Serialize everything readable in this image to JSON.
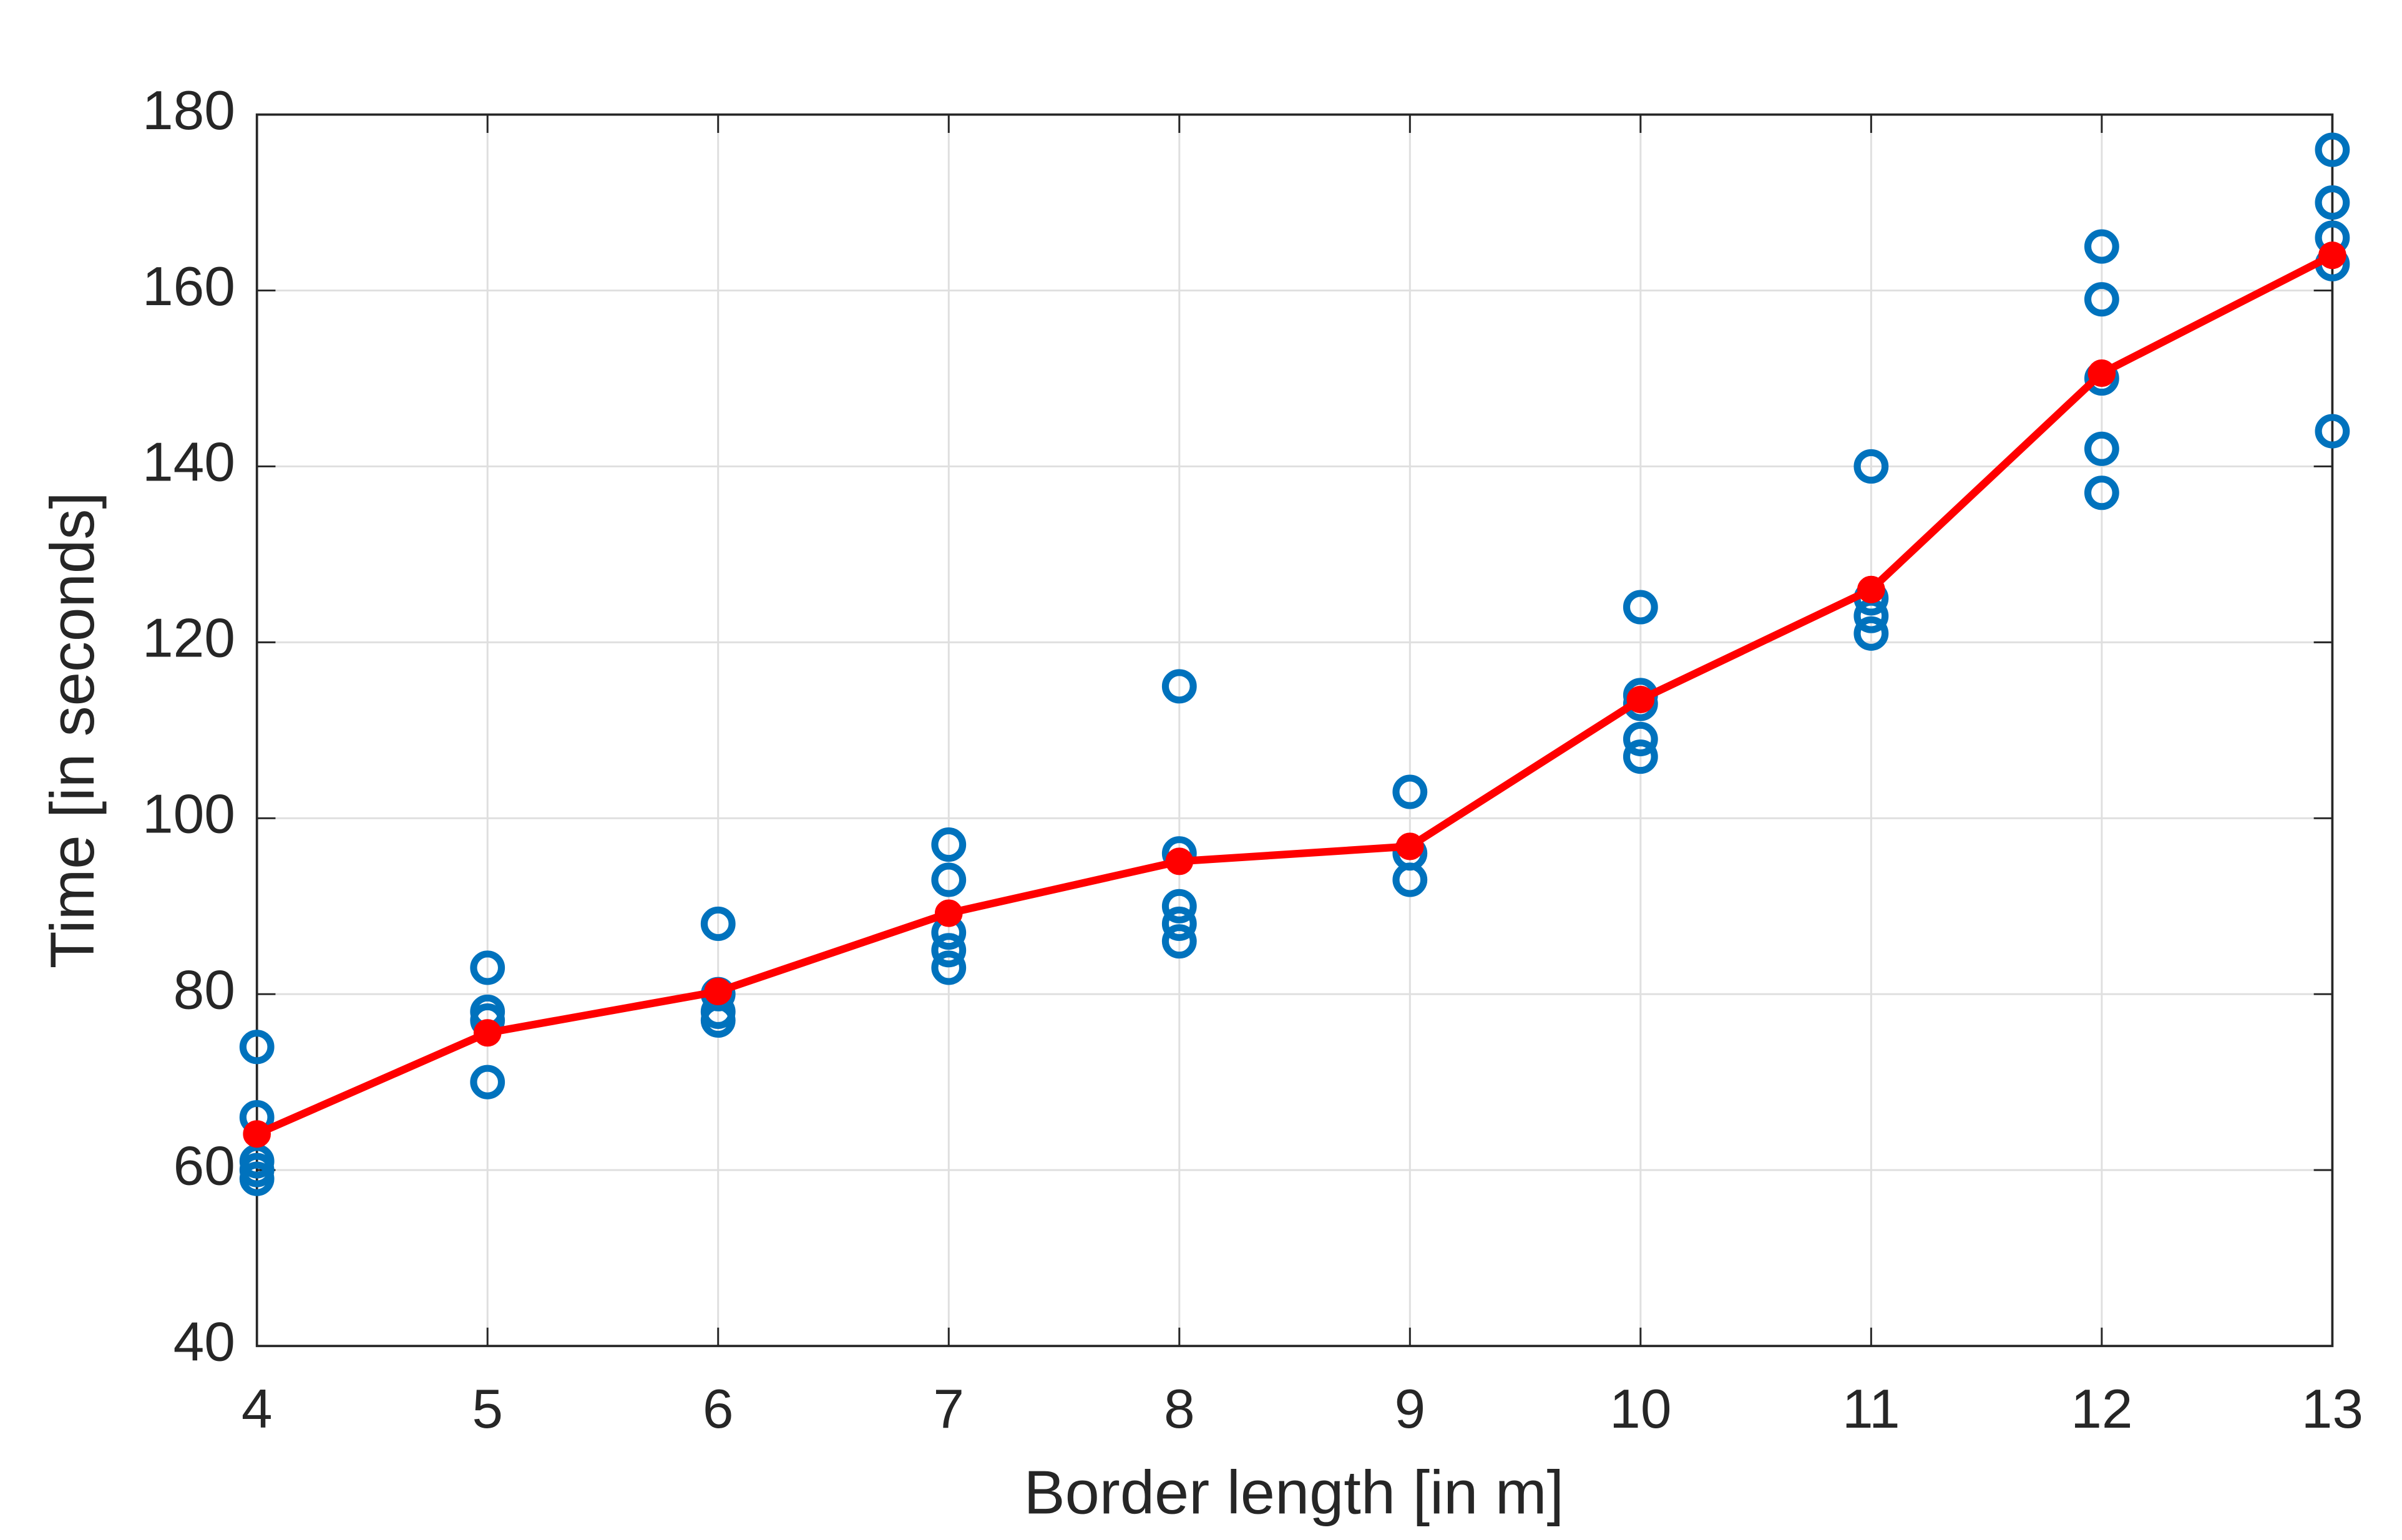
{
  "chart_data": {
    "type": "scatter",
    "xlabel": "Border length [in m]",
    "ylabel": "Time [in seconds]",
    "xlim": [
      4,
      13
    ],
    "xticks": [
      4,
      5,
      6,
      7,
      8,
      9,
      10,
      11,
      12,
      13
    ],
    "ylim": [
      40,
      180
    ],
    "yticks": [
      40,
      60,
      80,
      100,
      120,
      140,
      160,
      180
    ],
    "grid": true,
    "series": [
      {
        "color": "#0072BD",
        "marker": "circle",
        "line": false,
        "x": [
          4,
          4,
          4,
          4,
          4,
          5,
          5,
          5,
          5,
          6,
          6,
          6,
          6,
          7,
          7,
          7,
          7,
          7,
          8,
          8,
          8,
          8,
          8,
          9,
          9,
          9,
          10,
          10,
          10,
          10,
          10,
          11,
          11,
          11,
          11,
          12,
          12,
          12,
          12,
          12,
          13,
          13,
          13,
          13,
          13
        ],
        "values": [
          74,
          66,
          61,
          60,
          59,
          83,
          78,
          77,
          70,
          88,
          80,
          78,
          77,
          97,
          93,
          87,
          85,
          83,
          115,
          96,
          90,
          88,
          86,
          103,
          96,
          93,
          124,
          114,
          113,
          109,
          107,
          140,
          125,
          123,
          121,
          165,
          159,
          150,
          142,
          137,
          176,
          170,
          166,
          163,
          144
        ]
      },
      {
        "color": "#ff0000",
        "marker": "star",
        "line": true,
        "x": [
          4,
          5,
          6,
          7,
          8,
          9,
          10,
          11,
          12,
          13
        ],
        "values": [
          64.1,
          75.6,
          80.3,
          89.2,
          95.1,
          96.8,
          113.5,
          126,
          150.6,
          164
        ]
      }
    ]
  }
}
